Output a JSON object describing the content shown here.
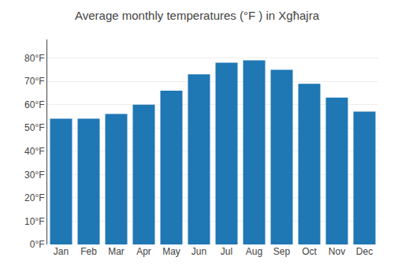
{
  "chart_data": {
    "type": "bar",
    "title": "Average monthly temperatures (°F ) in Xgħajra",
    "categories": [
      "Jan",
      "Feb",
      "Mar",
      "Apr",
      "May",
      "Jun",
      "Jul",
      "Aug",
      "Sep",
      "Oct",
      "Nov",
      "Dec"
    ],
    "values": [
      54,
      54,
      56,
      60,
      66,
      73,
      78,
      79,
      75,
      69,
      63,
      57
    ],
    "ylim": [
      0,
      88
    ],
    "yticks": [
      {
        "value": 0,
        "label": "0°F"
      },
      {
        "value": 10,
        "label": "10°F"
      },
      {
        "value": 20,
        "label": "20°F"
      },
      {
        "value": 30,
        "label": "30°F"
      },
      {
        "value": 40,
        "label": "40°F"
      },
      {
        "value": 50,
        "label": "50°F"
      },
      {
        "value": 60,
        "label": "60°F"
      },
      {
        "value": 70,
        "label": "70°F"
      },
      {
        "value": 80,
        "label": "80°F"
      }
    ],
    "grid": true
  }
}
